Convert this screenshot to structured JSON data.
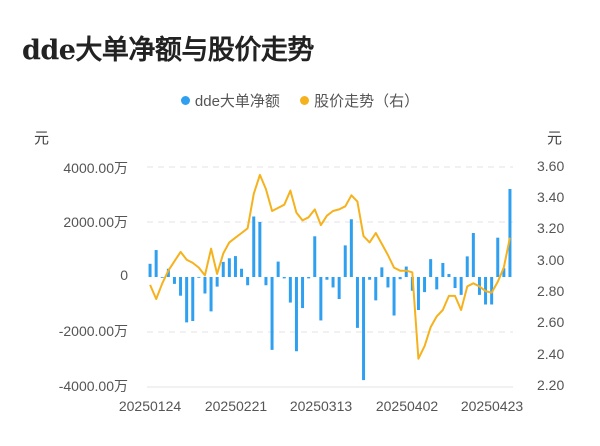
{
  "title": "dde大单净额与股价走势",
  "legend": [
    {
      "label": "dde大单净额",
      "color": "#2f9ff0"
    },
    {
      "label": "股价走势（右）",
      "color": "#f5b21d"
    }
  ],
  "left_unit": "元",
  "right_unit": "元",
  "left_ticks": [
    "4000.00万",
    "2000.00万",
    "0",
    "-2000.00万",
    "-4000.00万"
  ],
  "right_ticks": [
    "3.60",
    "3.40",
    "3.20",
    "3.00",
    "2.80",
    "2.60",
    "2.40",
    "2.20"
  ],
  "x_ticks": [
    "20250124",
    "20250221",
    "20250313",
    "20250402",
    "20250423"
  ],
  "chart_data": {
    "type": "bar+line",
    "title": "dde大单净额与股价走势",
    "xlabel": "",
    "ylabel_left": "元",
    "ylabel_right": "元",
    "ylim_left": [
      -4000,
      4000
    ],
    "ylim_right": [
      2.2,
      3.6
    ],
    "grid": true,
    "legend_position": "top",
    "x_tick_labels": [
      "20250124",
      "20250221",
      "20250313",
      "20250402",
      "20250423"
    ],
    "series": [
      {
        "name": "dde大单净额",
        "type": "bar",
        "axis": "left",
        "unit": "万元",
        "values": [
          480,
          980,
          0,
          300,
          -250,
          -680,
          -1650,
          -1600,
          0,
          -600,
          -1250,
          -350,
          550,
          680,
          760,
          300,
          -300,
          2200,
          2000,
          -300,
          -2650,
          560,
          -50,
          -930,
          -2700,
          -1130,
          -50,
          1480,
          -1580,
          -100,
          -380,
          -800,
          1150,
          2100,
          -1850,
          -3750,
          -100,
          -850,
          350,
          -380,
          -1400,
          -80,
          380,
          -500,
          -1200,
          -550,
          650,
          -450,
          510,
          110,
          -400,
          -650,
          750,
          1600,
          -650,
          -1000,
          -1000,
          1430,
          320,
          3200
        ],
        "note": "approximate values read from gridlines"
      },
      {
        "name": "股价走势（右）",
        "type": "line",
        "axis": "right",
        "unit": "元",
        "values": [
          2.85,
          2.76,
          2.86,
          2.94,
          3.0,
          3.06,
          3.01,
          2.99,
          2.96,
          2.91,
          3.08,
          2.92,
          3.05,
          3.12,
          3.15,
          3.18,
          3.21,
          3.43,
          3.55,
          3.46,
          3.32,
          3.34,
          3.36,
          3.45,
          3.31,
          3.26,
          3.28,
          3.33,
          3.23,
          3.29,
          3.32,
          3.33,
          3.35,
          3.42,
          3.38,
          3.16,
          3.12,
          3.18,
          3.11,
          3.04,
          2.96,
          2.94,
          2.94,
          2.93,
          2.38,
          2.46,
          2.58,
          2.65,
          2.69,
          2.78,
          2.78,
          2.69,
          2.84,
          2.86,
          2.84,
          2.81,
          2.8,
          2.87,
          2.96,
          3.15
        ]
      }
    ]
  }
}
